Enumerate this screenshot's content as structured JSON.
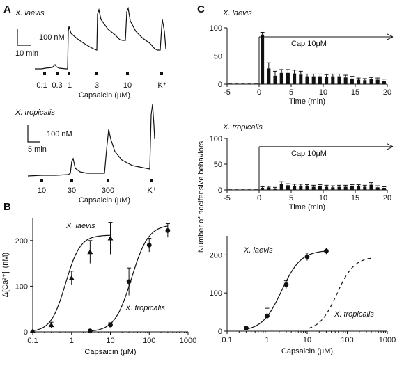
{
  "panel_labels": {
    "a": "A",
    "b": "B",
    "c": "C"
  },
  "panelA": {
    "top": {
      "species": "X. laevis",
      "scale_y": "100 nM",
      "scale_x": "10 min",
      "stim_labels": [
        "0.1",
        "0.3",
        "1",
        "3",
        "10",
        "K⁺"
      ],
      "xlabel": "Capsaicin (μM)"
    },
    "bottom": {
      "species": "X. tropicalis",
      "scale_y": "100 nM",
      "scale_x": "5 min",
      "stim_labels": [
        "10",
        "30",
        "300",
        "K⁺"
      ],
      "xlabel": "Capsaicin (μM)"
    }
  },
  "chart_data": [
    {
      "panel": "B",
      "type": "scatter",
      "xscale": "log",
      "xlim": [
        0.1,
        1000
      ],
      "ylim": [
        0,
        250
      ],
      "xticks": [
        "0.1",
        "1",
        "10",
        "100",
        "1000"
      ],
      "yticks": [
        "0",
        "100",
        "200"
      ],
      "xlabel": "Capsaicin  (μM)",
      "ylabel": "Δ[Ca²⁺]ᵢ (nM)",
      "series": [
        {
          "name": "X. laevis",
          "marker": "triangle",
          "fit": "solid",
          "x": [
            0.1,
            0.3,
            1,
            3,
            10
          ],
          "y": [
            2,
            15,
            118,
            175,
            205
          ],
          "err": [
            0,
            6,
            15,
            25,
            35
          ]
        },
        {
          "name": "X. tropicalis",
          "marker": "circle",
          "fit": "solid",
          "x": [
            3,
            10,
            30,
            100,
            300
          ],
          "y": [
            2,
            15,
            110,
            190,
            222
          ],
          "err": [
            0,
            5,
            30,
            15,
            15
          ]
        }
      ]
    },
    {
      "panel": "C-top",
      "type": "bar",
      "species": "X. laevis",
      "annotation": "Cap 10μM",
      "xlim": [
        -5,
        20
      ],
      "ylim": [
        0,
        100
      ],
      "xticks": [
        "-5",
        "0",
        "5",
        "10",
        "15",
        "20"
      ],
      "yticks": [
        "0",
        "50",
        "100"
      ],
      "xlabel": "Time (min)",
      "x": [
        -4.5,
        -3.5,
        -2.5,
        -1.5,
        -0.5,
        0.5,
        1.5,
        2.5,
        3.5,
        4.5,
        5.5,
        6.5,
        7.5,
        8.5,
        9.5,
        10.5,
        11.5,
        12.5,
        13.5,
        14.5,
        15.5,
        16.5,
        17.5,
        18.5,
        19.5
      ],
      "values": [
        0,
        0,
        0,
        0,
        0,
        88,
        28,
        15,
        20,
        20,
        19,
        17,
        14,
        14,
        14,
        13,
        14,
        14,
        12,
        10,
        8,
        7,
        9,
        8,
        6
      ],
      "err": [
        0,
        0,
        0,
        0,
        0,
        4,
        10,
        8,
        6,
        6,
        6,
        6,
        4,
        4,
        4,
        4,
        4,
        4,
        4,
        4,
        3,
        3,
        3,
        3,
        3
      ]
    },
    {
      "panel": "C-middle",
      "type": "bar",
      "species": "X. tropicalis",
      "annotation": "Cap 10μM",
      "xlim": [
        -5,
        20
      ],
      "ylim": [
        0,
        100
      ],
      "xticks": [
        "-5",
        "0",
        "5",
        "10",
        "15",
        "20"
      ],
      "yticks": [
        "0",
        "50",
        "100"
      ],
      "xlabel": "Time (min)",
      "x": [
        -4.5,
        -3.5,
        -2.5,
        -1.5,
        -0.5,
        0.5,
        1.5,
        2.5,
        3.5,
        4.5,
        5.5,
        6.5,
        7.5,
        8.5,
        9.5,
        10.5,
        11.5,
        12.5,
        13.5,
        14.5,
        15.5,
        16.5,
        17.5,
        18.5,
        19.5
      ],
      "values": [
        1,
        1,
        0,
        0,
        0,
        4,
        5,
        3,
        12,
        9,
        8,
        8,
        7,
        6,
        7,
        6,
        5,
        6,
        6,
        7,
        7,
        6,
        10,
        5,
        4
      ],
      "err": [
        0,
        0,
        0,
        0,
        0,
        2,
        2,
        2,
        4,
        3,
        3,
        3,
        3,
        3,
        3,
        3,
        3,
        3,
        3,
        3,
        3,
        3,
        4,
        3,
        2
      ]
    },
    {
      "panel": "C-bottom",
      "type": "scatter",
      "xscale": "log",
      "xlim": [
        0.1,
        1000
      ],
      "ylim": [
        0,
        250
      ],
      "xticks": [
        "0.1",
        "1",
        "10",
        "100",
        "1000"
      ],
      "yticks": [
        "0",
        "100",
        "200"
      ],
      "xlabel": "Capsaicin  (μM)",
      "series": [
        {
          "name": "X. laevis",
          "marker": "circle",
          "fit": "solid",
          "x": [
            0.3,
            1,
            3,
            10,
            30
          ],
          "y": [
            8,
            40,
            122,
            195,
            210
          ],
          "err": [
            0,
            20,
            10,
            10,
            8
          ]
        },
        {
          "name": "X. tropicalis",
          "marker": "none",
          "fit": "dashed",
          "x": [],
          "y": [],
          "err": []
        }
      ]
    }
  ],
  "shared_ylabel_C": "Number of nocifensive behaviors"
}
